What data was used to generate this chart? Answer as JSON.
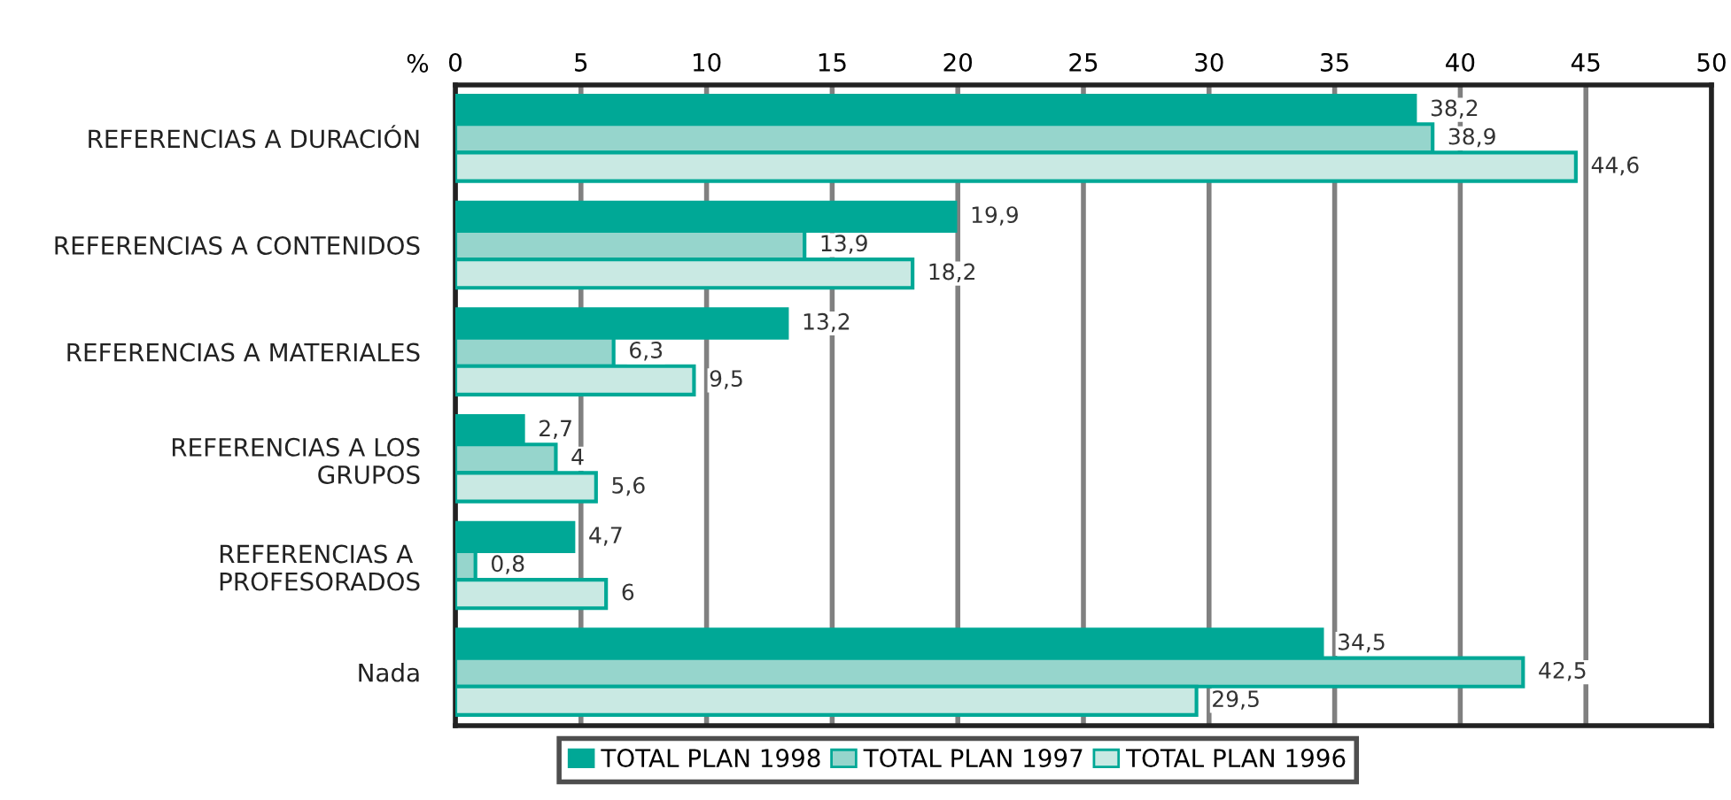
{
  "chart_data": {
    "type": "bar",
    "orientation": "horizontal",
    "xlabel": "%",
    "categories": [
      "REFERENCIAS A DURACIÓN",
      "REFERENCIAS A CONTENIDOS",
      "REFERENCIAS A MATERIALES",
      "REFERENCIAS A LOS\nGRUPOS",
      "REFERENCIAS A \nPROFESORADOS",
      "Nada"
    ],
    "series": [
      {
        "name": "TOTAL PLAN 1998",
        "color": "#00a896",
        "values": [
          38.2,
          19.9,
          13.2,
          2.7,
          4.7,
          34.5
        ],
        "value_labels": [
          "38,2",
          "19,9",
          "13,2",
          "2,7",
          "4,7",
          "34,5"
        ]
      },
      {
        "name": "TOTAL PLAN 1997",
        "color": "#96d5cc",
        "values": [
          38.9,
          13.9,
          6.3,
          4,
          0.8,
          42.5
        ],
        "value_labels": [
          "38,9",
          "13,9",
          "6,3",
          "4",
          "0,8",
          "42,5"
        ]
      },
      {
        "name": "TOTAL PLAN 1996",
        "color": "#c9e9e3",
        "values": [
          44.6,
          18.2,
          9.5,
          5.6,
          6,
          29.5
        ],
        "value_labels": [
          "44,6",
          "18,2",
          "9,5",
          "5,6",
          "6",
          "29,5"
        ]
      }
    ],
    "xlim": [
      0,
      50
    ],
    "xticks": [
      0,
      5,
      10,
      15,
      20,
      25,
      30,
      35,
      40,
      45,
      50
    ],
    "grid": "x",
    "legend": "bottom"
  }
}
